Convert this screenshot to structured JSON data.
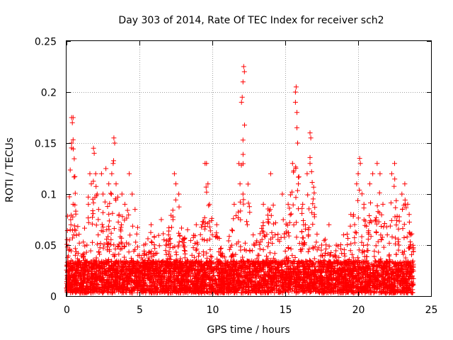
{
  "chart_data": {
    "type": "scatter",
    "title": "Day 303 of 2014, Rate Of TEC Index for receiver sch2",
    "xlabel": "GPS time / hours",
    "ylabel": "ROTI / TECUs",
    "xlim": [
      0,
      25
    ],
    "ylim": [
      0,
      0.25
    ],
    "x_ticks": [
      0,
      5,
      10,
      15,
      20,
      25
    ],
    "y_ticks": [
      0,
      0.05,
      0.1,
      0.15,
      0.2,
      0.25
    ],
    "x_tick_labels": [
      "0",
      "5",
      "10",
      "15",
      "20",
      "25"
    ],
    "y_tick_labels": [
      "0",
      "0.05",
      "0.1",
      "0.15",
      "0.2",
      "0.25"
    ],
    "grid": true,
    "marker": "+",
    "marker_color": "#ff0000",
    "series": [
      {
        "name": "ROTI",
        "points": [
          [
            0.0,
            0.008
          ],
          [
            0.05,
            0.02
          ],
          [
            0.1,
            0.03
          ],
          [
            0.15,
            0.045
          ],
          [
            0.2,
            0.055
          ],
          [
            0.25,
            0.065
          ],
          [
            0.3,
            0.07
          ],
          [
            0.35,
            0.15
          ],
          [
            0.35,
            0.175
          ],
          [
            0.4,
            0.17
          ],
          [
            0.45,
            0.175
          ],
          [
            0.45,
            0.09
          ],
          [
            0.5,
            0.06
          ],
          [
            0.55,
            0.065
          ],
          [
            0.6,
            0.04
          ],
          [
            0.8,
            0.03
          ],
          [
            1.0,
            0.025
          ],
          [
            1.2,
            0.035
          ],
          [
            1.4,
            0.05
          ],
          [
            1.5,
            0.09
          ],
          [
            1.6,
            0.12
          ],
          [
            1.7,
            0.11
          ],
          [
            1.8,
            0.095
          ],
          [
            1.85,
            0.145
          ],
          [
            1.9,
            0.14
          ],
          [
            2.0,
            0.12
          ],
          [
            2.1,
            0.1
          ],
          [
            2.2,
            0.085
          ],
          [
            2.4,
            0.12
          ],
          [
            2.5,
            0.1
          ],
          [
            2.7,
            0.125
          ],
          [
            2.9,
            0.11
          ],
          [
            3.1,
            0.12
          ],
          [
            3.2,
            0.13
          ],
          [
            3.25,
            0.155
          ],
          [
            3.3,
            0.15
          ],
          [
            3.4,
            0.11
          ],
          [
            3.6,
            0.08
          ],
          [
            3.8,
            0.1
          ],
          [
            4.0,
            0.09
          ],
          [
            4.3,
            0.12
          ],
          [
            4.5,
            0.1
          ],
          [
            4.7,
            0.085
          ],
          [
            5.0,
            0.04
          ],
          [
            5.3,
            0.05
          ],
          [
            5.5,
            0.03
          ],
          [
            5.8,
            0.07
          ],
          [
            6.0,
            0.04
          ],
          [
            6.5,
            0.075
          ],
          [
            6.8,
            0.05
          ],
          [
            7.0,
            0.06
          ],
          [
            7.3,
            0.075
          ],
          [
            7.4,
            0.12
          ],
          [
            7.5,
            0.11
          ],
          [
            7.7,
            0.1
          ],
          [
            8.0,
            0.05
          ],
          [
            8.3,
            0.065
          ],
          [
            8.6,
            0.04
          ],
          [
            8.9,
            0.07
          ],
          [
            9.3,
            0.07
          ],
          [
            9.5,
            0.13
          ],
          [
            9.6,
            0.13
          ],
          [
            9.7,
            0.11
          ],
          [
            9.8,
            0.09
          ],
          [
            10.0,
            0.06
          ],
          [
            10.3,
            0.07
          ],
          [
            10.6,
            0.04
          ],
          [
            11.0,
            0.03
          ],
          [
            11.5,
            0.09
          ],
          [
            11.9,
            0.11
          ],
          [
            12.0,
            0.19
          ],
          [
            12.05,
            0.195
          ],
          [
            12.1,
            0.21
          ],
          [
            12.15,
            0.225
          ],
          [
            12.2,
            0.22
          ],
          [
            12.1,
            0.153
          ],
          [
            12.1,
            0.1
          ],
          [
            12.4,
            0.07
          ],
          [
            12.8,
            0.06
          ],
          [
            13.2,
            0.04
          ],
          [
            13.5,
            0.09
          ],
          [
            14.0,
            0.12
          ],
          [
            14.3,
            0.06
          ],
          [
            14.8,
            0.1
          ],
          [
            15.2,
            0.09
          ],
          [
            15.5,
            0.13
          ],
          [
            15.7,
            0.2
          ],
          [
            15.75,
            0.205
          ],
          [
            15.7,
            0.19
          ],
          [
            15.8,
            0.18
          ],
          [
            15.8,
            0.165
          ],
          [
            15.85,
            0.15
          ],
          [
            15.9,
            0.11
          ],
          [
            16.2,
            0.09
          ],
          [
            16.5,
            0.12
          ],
          [
            16.7,
            0.16
          ],
          [
            16.75,
            0.155
          ],
          [
            16.7,
            0.13
          ],
          [
            17.0,
            0.08
          ],
          [
            17.5,
            0.05
          ],
          [
            18.0,
            0.07
          ],
          [
            18.5,
            0.05
          ],
          [
            19.0,
            0.06
          ],
          [
            19.5,
            0.08
          ],
          [
            19.9,
            0.11
          ],
          [
            20.0,
            0.12
          ],
          [
            20.1,
            0.135
          ],
          [
            20.15,
            0.13
          ],
          [
            20.4,
            0.09
          ],
          [
            20.8,
            0.11
          ],
          [
            21.0,
            0.12
          ],
          [
            21.3,
            0.13
          ],
          [
            21.5,
            0.12
          ],
          [
            21.7,
            0.09
          ],
          [
            22.0,
            0.06
          ],
          [
            22.3,
            0.12
          ],
          [
            22.5,
            0.13
          ],
          [
            22.8,
            0.05
          ],
          [
            23.0,
            0.1
          ],
          [
            23.2,
            0.11
          ],
          [
            23.4,
            0.09
          ],
          [
            23.5,
            0.08
          ],
          [
            23.6,
            0.06
          ],
          [
            23.7,
            0.02
          ]
        ],
        "baseline_band": {
          "x_range": [
            0,
            23.8
          ],
          "y_range": [
            0.003,
            0.045
          ]
        }
      }
    ]
  }
}
